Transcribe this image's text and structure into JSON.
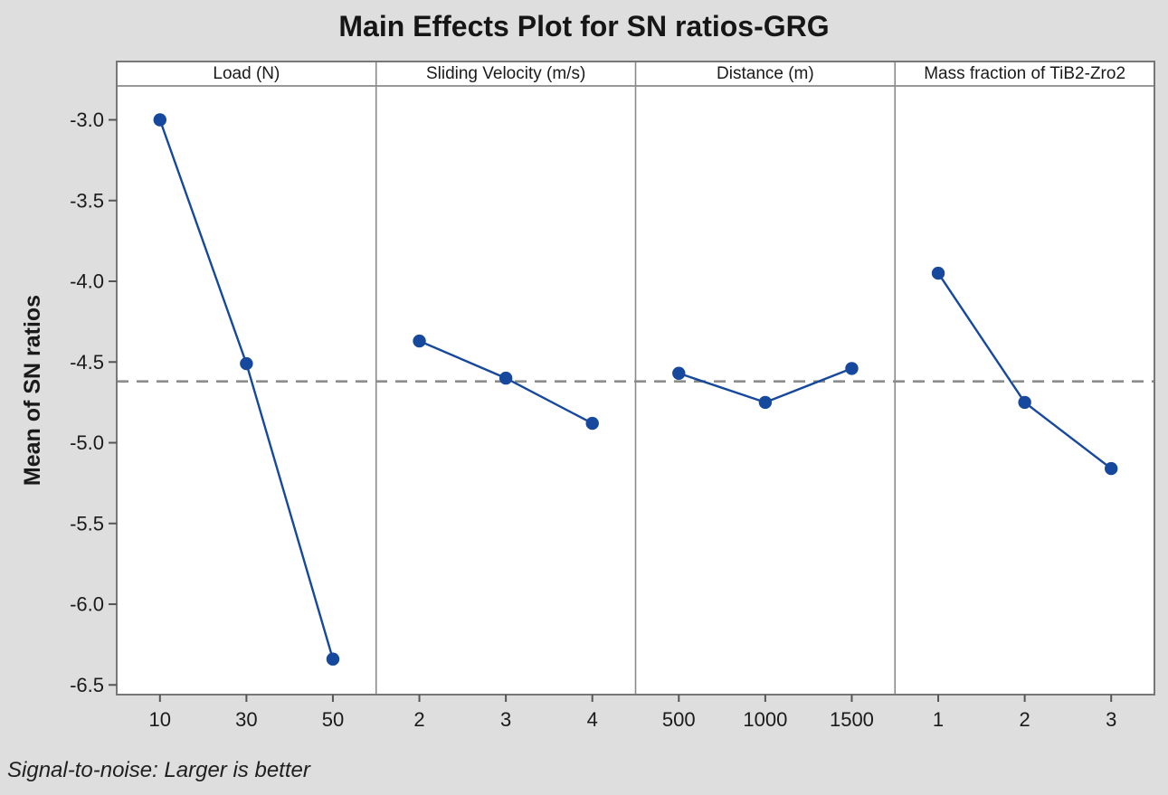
{
  "chart_data": {
    "type": "line",
    "title": "Main Effects Plot for SN ratios-GRG",
    "ylabel": "Mean of SN ratios",
    "footnote": "Signal-to-noise: Larger is better",
    "ylim": [
      -6.56,
      -2.79
    ],
    "yticks": [
      -3.0,
      -3.5,
      -4.0,
      -4.5,
      -5.0,
      -5.5,
      -6.0,
      -6.5
    ],
    "grand_mean": -4.62,
    "grid": false,
    "legend": "none",
    "panels": [
      {
        "label": "Load (N)",
        "categories": [
          "10",
          "30",
          "50"
        ],
        "values": [
          -3.0,
          -4.51,
          -6.34
        ]
      },
      {
        "label": "Sliding Velocity (m/s)",
        "categories": [
          "2",
          "3",
          "4"
        ],
        "values": [
          -4.37,
          -4.6,
          -4.88
        ]
      },
      {
        "label": "Distance (m)",
        "categories": [
          "500",
          "1000",
          "1500"
        ],
        "values": [
          -4.57,
          -4.75,
          -4.54
        ]
      },
      {
        "label": "Mass fraction of TiB2-Zro2",
        "categories": [
          "1",
          "2",
          "3"
        ],
        "values": [
          -3.95,
          -4.75,
          -5.16
        ]
      }
    ],
    "colors": {
      "point": "#16489D",
      "line": "#16489D",
      "grand_mean_line": "#8C8C8C",
      "border": "#777777",
      "divider": "#8A8A8A",
      "tick": "#555555",
      "panel_bg": "#FFFFFF",
      "figure_bg": "#DEDEDE",
      "text": "#1A1A1A"
    }
  }
}
